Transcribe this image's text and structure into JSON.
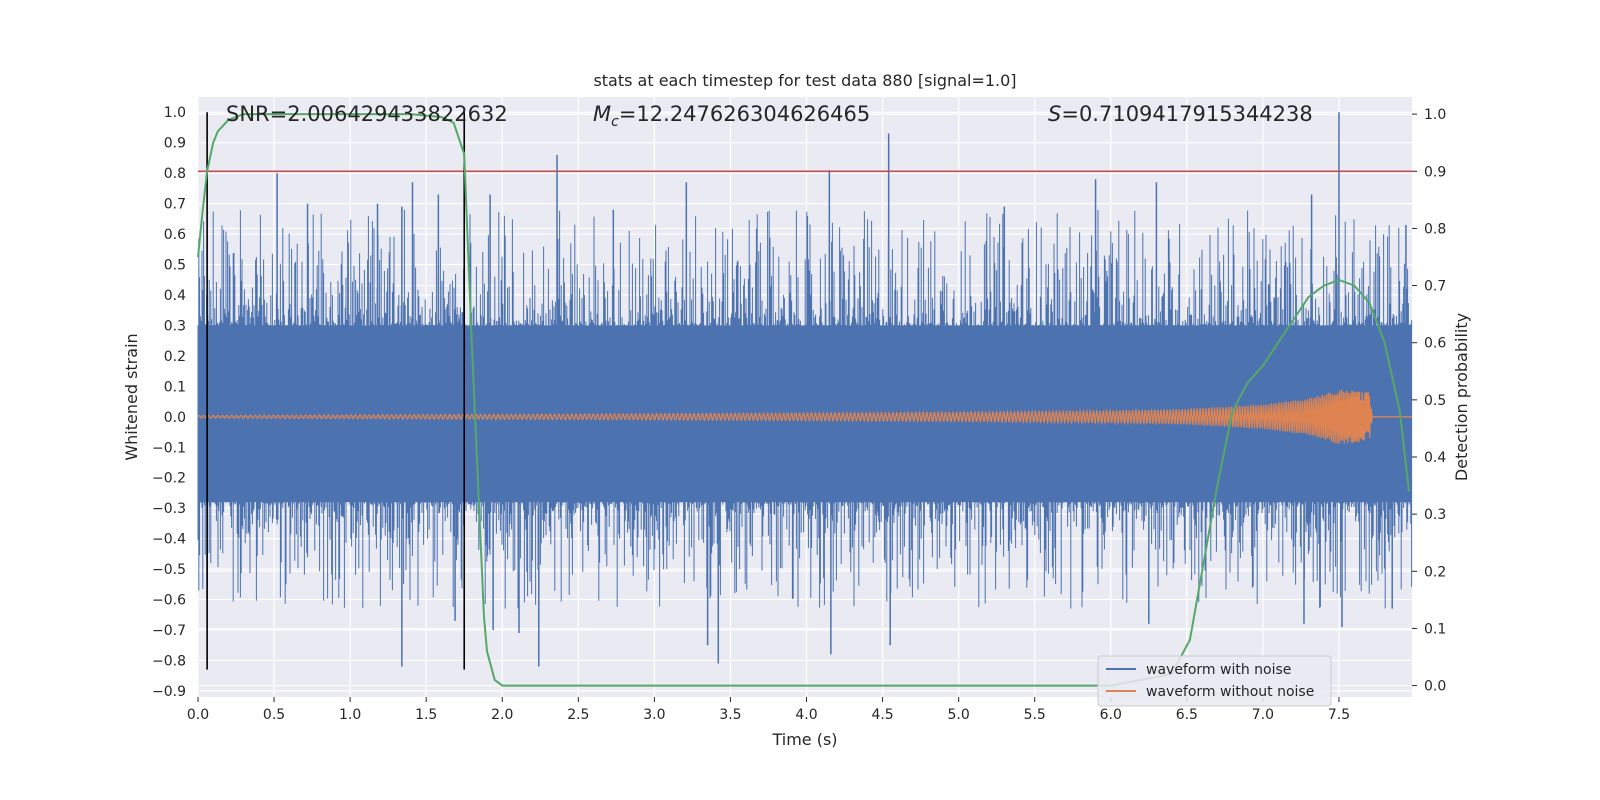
{
  "chart_data": {
    "type": "line",
    "title": "stats at each timestep for test data 880 [signal=1.0]",
    "xlabel": "Time (s)",
    "ylabel_left": "Whitened strain",
    "ylabel_right": "Detection probability",
    "xlim": [
      0,
      7.98
    ],
    "ylim_left": [
      -0.92,
      1.05
    ],
    "ylim_right": [
      -0.02,
      1.03
    ],
    "xticks": [
      0.0,
      0.5,
      1.0,
      1.5,
      2.0,
      2.5,
      3.0,
      3.5,
      4.0,
      4.5,
      5.0,
      5.5,
      6.0,
      6.5,
      7.0,
      7.5
    ],
    "xtick_labels": [
      "0.0",
      "0.5",
      "1.0",
      "1.5",
      "2.0",
      "2.5",
      "3.0",
      "3.5",
      "4.0",
      "4.5",
      "5.0",
      "5.5",
      "6.0",
      "6.5",
      "7.0",
      "7.5"
    ],
    "yticks_left": [
      1.0,
      0.9,
      0.8,
      0.7,
      0.6,
      0.5,
      0.4,
      0.3,
      0.2,
      0.1,
      0.0,
      -0.1,
      -0.2,
      -0.3,
      -0.4,
      -0.5,
      -0.6,
      -0.7,
      -0.8,
      -0.9
    ],
    "ytick_labels_left": [
      "1.0",
      "0.9",
      "0.8",
      "0.7",
      "0.6",
      "0.5",
      "0.4",
      "0.3",
      "0.2",
      "0.1",
      "0.0",
      "−0.1",
      "−0.2",
      "−0.3",
      "−0.4",
      "−0.5",
      "−0.6",
      "−0.7",
      "−0.8",
      "−0.9"
    ],
    "yticks_right": [
      1.0,
      0.9,
      0.8,
      0.7,
      0.6,
      0.5,
      0.4,
      0.3,
      0.2,
      0.1,
      0.0
    ],
    "ytick_labels_right": [
      "1.0",
      "0.9",
      "0.8",
      "0.7",
      "0.6",
      "0.5",
      "0.4",
      "0.3",
      "0.2",
      "0.1",
      "0.0"
    ],
    "annotations": {
      "snr": "SNR=2.006429433822632",
      "mc_symbol": "M",
      "mc_sub": "c",
      "mc_value": "=12.247626304626465",
      "s_symbol": "S",
      "s_value": "=0.7109417915344238"
    },
    "threshold_line": {
      "axis": "right",
      "y": 0.9,
      "color": "#c44e52"
    },
    "vertical_markers": {
      "x": [
        0.06,
        1.75
      ],
      "ymin": -0.83,
      "ymax": 1.0,
      "color": "#000000"
    },
    "series": [
      {
        "name": "waveform with noise",
        "color": "#4c72b0",
        "axis": "left",
        "generated": "dense noise trace, amplitude ~0.3-0.5, peaks listed",
        "peaks": [
          [
            0.52,
            0.8
          ],
          [
            0.72,
            0.7
          ],
          [
            1.18,
            0.7
          ],
          [
            1.34,
            0.69
          ],
          [
            1.41,
            0.77
          ],
          [
            1.58,
            0.73
          ],
          [
            1.92,
            0.73
          ],
          [
            2.36,
            0.86
          ],
          [
            2.73,
            0.68
          ],
          [
            3.21,
            0.77
          ],
          [
            4.15,
            0.81
          ],
          [
            4.54,
            0.93
          ],
          [
            5.3,
            0.69
          ],
          [
            5.9,
            0.78
          ],
          [
            6.3,
            0.77
          ],
          [
            7.32,
            0.73
          ],
          [
            7.5,
            1.0
          ],
          [
            7.94,
            0.63
          ]
        ],
        "troughs": [
          [
            0.06,
            -0.6
          ],
          [
            1.34,
            -0.82
          ],
          [
            1.69,
            -0.67
          ],
          [
            1.94,
            -0.7
          ],
          [
            2.11,
            -0.71
          ],
          [
            2.24,
            -0.82
          ],
          [
            3.35,
            -0.75
          ],
          [
            3.42,
            -0.81
          ],
          [
            4.16,
            -0.78
          ],
          [
            4.55,
            -0.75
          ],
          [
            6.25,
            -0.68
          ],
          [
            7.27,
            -0.68
          ],
          [
            7.52,
            -0.69
          ],
          [
            7.85,
            -0.63
          ]
        ]
      },
      {
        "name": "waveform without noise",
        "color": "#dd8452",
        "axis": "left",
        "envelope": [
          [
            0.0,
            0.004
          ],
          [
            3.0,
            0.01
          ],
          [
            5.0,
            0.015
          ],
          [
            6.0,
            0.02
          ],
          [
            6.5,
            0.025
          ],
          [
            7.0,
            0.04
          ],
          [
            7.3,
            0.06
          ],
          [
            7.5,
            0.09
          ],
          [
            7.7,
            0.08
          ],
          [
            7.72,
            0.0
          ]
        ]
      },
      {
        "name": "detection probability",
        "color": "#55a868",
        "axis": "right",
        "x": [
          0.0,
          0.03,
          0.06,
          0.1,
          0.13,
          0.2,
          0.3,
          0.45,
          0.6,
          1.0,
          1.4,
          1.6,
          1.68,
          1.75,
          1.8,
          1.85,
          1.88,
          1.9,
          1.95,
          2.0,
          2.1,
          2.5,
          3.0,
          4.0,
          5.0,
          6.0,
          6.4,
          6.52,
          6.6,
          6.7,
          6.8,
          6.9,
          7.0,
          7.1,
          7.2,
          7.3,
          7.4,
          7.5,
          7.6,
          7.7,
          7.8,
          7.9,
          7.96
        ],
        "y": [
          0.75,
          0.83,
          0.9,
          0.95,
          0.97,
          0.99,
          1.0,
          1.0,
          1.0,
          1.0,
          1.0,
          0.995,
          0.985,
          0.93,
          0.6,
          0.3,
          0.12,
          0.06,
          0.01,
          0.0,
          0.0,
          0.0,
          0.0,
          0.0,
          0.0,
          0.0,
          0.02,
          0.08,
          0.2,
          0.35,
          0.48,
          0.53,
          0.56,
          0.6,
          0.64,
          0.68,
          0.7,
          0.71,
          0.7,
          0.67,
          0.6,
          0.48,
          0.34
        ]
      }
    ],
    "legend": {
      "position": "lower-right",
      "entries": [
        {
          "label": "waveform with noise",
          "color": "#4c72b0"
        },
        {
          "label": "waveform without noise",
          "color": "#dd8452"
        }
      ]
    }
  }
}
